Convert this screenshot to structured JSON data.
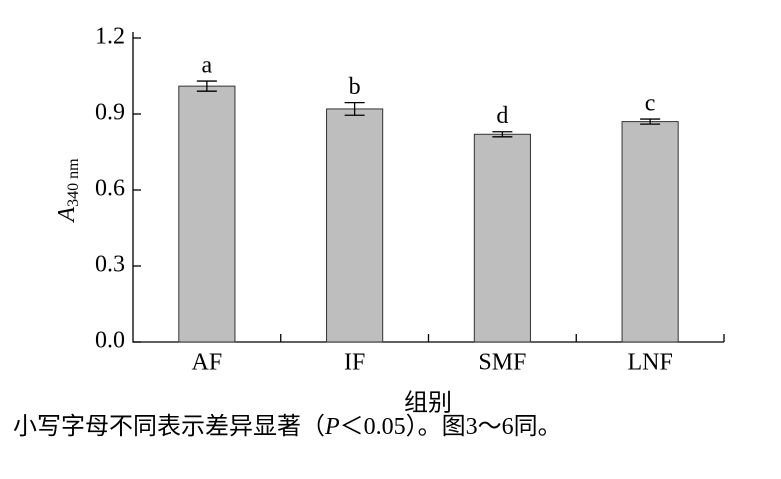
{
  "chart_data": {
    "type": "bar",
    "ylabel": {
      "main": "A",
      "sub": "340 nm"
    },
    "xlabel": "组别",
    "categories": [
      "AF",
      "IF",
      "SMF",
      "LNF"
    ],
    "values": [
      1.01,
      0.92,
      0.82,
      0.87
    ],
    "errors": [
      0.02,
      0.025,
      0.01,
      0.01
    ],
    "annotations": [
      "a",
      "b",
      "d",
      "c"
    ],
    "color": "#bebebe",
    "ylim": [
      0,
      1.2
    ],
    "yticks": [
      {
        "value": 0,
        "label": "0.0"
      },
      0.3,
      0.6,
      0.9,
      1.2
    ],
    "grid": false
  },
  "caption": {
    "before": "小写字母不同表示差异显著（",
    "italic": "P",
    "after": "＜0.05）。图3～6同。"
  }
}
